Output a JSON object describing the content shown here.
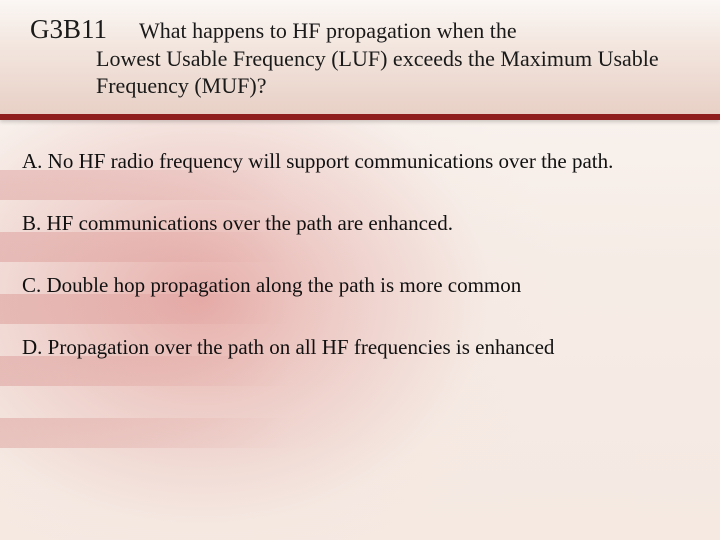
{
  "colors": {
    "header_border": "#9a2424",
    "text": "#111111",
    "bg_top": "#faf5f1",
    "bg_bottom": "#f5e9e2",
    "flag_red": "#b44040"
  },
  "typography": {
    "family": "Times New Roman",
    "qid_size_pt": 20,
    "question_size_pt": 16,
    "answer_size_pt": 16
  },
  "question": {
    "id": "G3B11",
    "text_line1": "What happens to HF propagation when the",
    "text_rest": "Lowest Usable Frequency (LUF) exceeds the Maximum Usable Frequency (MUF)?"
  },
  "answers": [
    {
      "label": "A.",
      "text": "No HF radio frequency will support communications over the path."
    },
    {
      "label": "B.",
      "text": "HF communications over the path are enhanced."
    },
    {
      "label": "C.",
      "text": "Double hop propagation along the path is more common"
    },
    {
      "label": "D.",
      "text": "Propagation over the path on all HF frequencies is enhanced"
    }
  ]
}
